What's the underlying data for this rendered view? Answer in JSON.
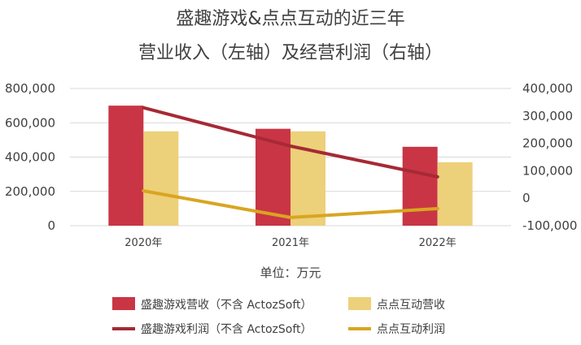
{
  "chart_data": {
    "type": "bar",
    "title_lines": [
      "盛趣游戏&点点互动的近三年",
      "营业收入（左轴）及经营利润（右轴）"
    ],
    "categories": [
      "2020年",
      "2021年",
      "2022年"
    ],
    "unit_label": "单位：万元",
    "left_axis": {
      "min": 0,
      "max": 800000,
      "ticks": [
        "0",
        "200,000",
        "400,000",
        "600,000",
        "800,000"
      ]
    },
    "right_axis": {
      "min": -100000,
      "max": 400000,
      "ticks": [
        "-100,000",
        "0",
        "100,000",
        "200,000",
        "300,000",
        "400,000"
      ]
    },
    "bar_series": [
      {
        "name": "盛趣游戏营收（不含 ActozSoft）",
        "color": "#c93545",
        "values": [
          700000,
          565000,
          460000
        ]
      },
      {
        "name": "点点互动营收",
        "color": "#edd07a",
        "values": [
          550000,
          550000,
          370000
        ]
      }
    ],
    "line_series": [
      {
        "name": "盛趣游戏利润（不含 ActozSoft）",
        "color": "#a52a35",
        "values": [
          330000,
          190000,
          78000
        ]
      },
      {
        "name": "点点互动利润",
        "color": "#d9a521",
        "values": [
          27000,
          -70000,
          -38000
        ]
      }
    ],
    "grid": true,
    "legend_position": "bottom"
  }
}
